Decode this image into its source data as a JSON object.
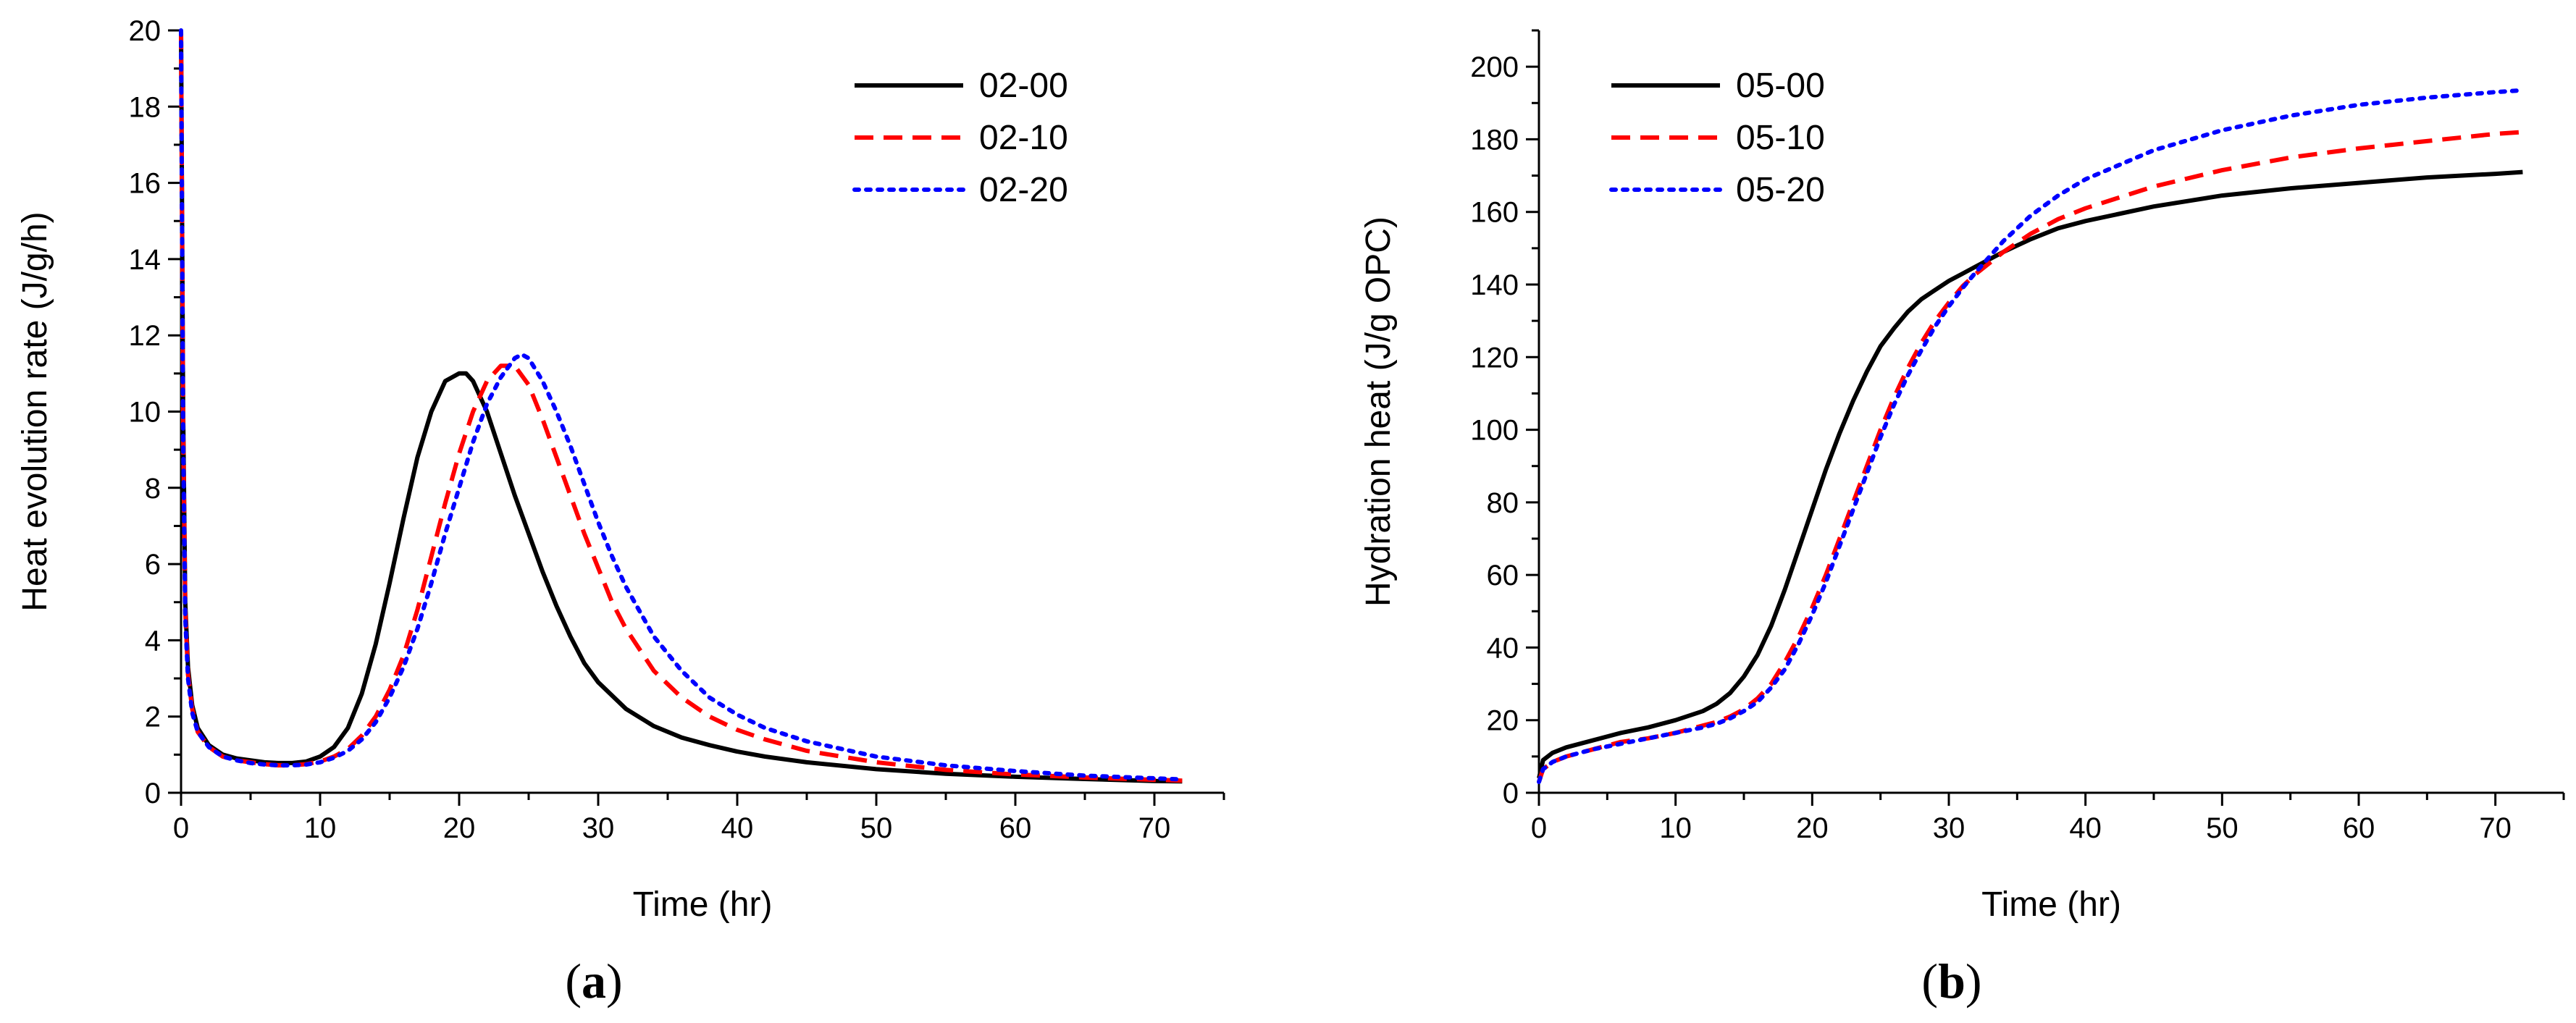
{
  "colors": {
    "series_00": "#000000",
    "series_10": "#ff0000",
    "series_20": "#0000ff"
  },
  "chart_data": [
    {
      "id": "a",
      "panel_label": "a",
      "type": "line",
      "title": "",
      "xlabel": "Time (hr)",
      "ylabel": "Heat evolution rate (J/g/h)",
      "xlim": [
        0,
        75
      ],
      "ylim": [
        0,
        20
      ],
      "xticks": [
        0,
        10,
        20,
        30,
        40,
        50,
        60,
        70
      ],
      "yticks": [
        0,
        2,
        4,
        6,
        8,
        10,
        12,
        14,
        16,
        18,
        20
      ],
      "legend_position": "top-right",
      "series": [
        {
          "name": "02-00",
          "color": "#000000",
          "dash": "solid",
          "x": [
            0,
            0.15,
            0.3,
            0.5,
            0.8,
            1.2,
            2,
            3,
            4,
            5,
            6,
            7,
            8,
            9,
            10,
            11,
            12,
            13,
            14,
            15,
            16,
            17,
            18,
            19,
            20,
            20.5,
            21,
            22,
            23,
            24,
            25,
            26,
            27,
            28,
            29,
            30,
            32,
            34,
            36,
            38,
            40,
            42,
            45,
            50,
            55,
            60,
            65,
            70,
            72
          ],
          "y": [
            20,
            10,
            5,
            3.3,
            2.3,
            1.7,
            1.25,
            1.0,
            0.9,
            0.85,
            0.8,
            0.78,
            0.78,
            0.82,
            0.95,
            1.2,
            1.7,
            2.6,
            3.9,
            5.5,
            7.2,
            8.8,
            10.0,
            10.8,
            11.0,
            11.0,
            10.8,
            10.0,
            8.9,
            7.8,
            6.8,
            5.8,
            4.9,
            4.1,
            3.4,
            2.9,
            2.2,
            1.75,
            1.45,
            1.25,
            1.08,
            0.95,
            0.8,
            0.62,
            0.5,
            0.42,
            0.36,
            0.31,
            0.3
          ]
        },
        {
          "name": "02-10",
          "color": "#ff0000",
          "dash": "dashed",
          "x": [
            0,
            0.15,
            0.3,
            0.5,
            0.8,
            1.2,
            2,
            3,
            4,
            5,
            6,
            7,
            8,
            9,
            10,
            11,
            12,
            13,
            14,
            15,
            16,
            17,
            18,
            19,
            20,
            21,
            22,
            22.5,
            23,
            24,
            25,
            26,
            27,
            28,
            29,
            30,
            31,
            32,
            34,
            36,
            38,
            40,
            42,
            45,
            50,
            55,
            60,
            65,
            70,
            72
          ],
          "y": [
            20,
            9.5,
            4.8,
            3.1,
            2.2,
            1.6,
            1.2,
            0.95,
            0.85,
            0.8,
            0.75,
            0.72,
            0.72,
            0.75,
            0.82,
            0.95,
            1.15,
            1.5,
            2.0,
            2.7,
            3.6,
            4.8,
            6.2,
            7.6,
            8.9,
            10.0,
            10.8,
            11.0,
            11.2,
            11.2,
            10.7,
            9.8,
            8.8,
            7.8,
            6.8,
            5.9,
            5.0,
            4.3,
            3.2,
            2.5,
            2.0,
            1.65,
            1.4,
            1.1,
            0.8,
            0.6,
            0.48,
            0.4,
            0.34,
            0.32
          ]
        },
        {
          "name": "02-20",
          "color": "#0000ff",
          "dash": "dotted",
          "x": [
            0,
            0.15,
            0.3,
            0.5,
            0.8,
            1.2,
            2,
            3,
            4,
            5,
            6,
            7,
            8,
            9,
            10,
            11,
            12,
            13,
            14,
            15,
            16,
            17,
            18,
            19,
            20,
            21,
            22,
            23,
            24,
            24.5,
            25,
            26,
            27,
            28,
            29,
            30,
            31,
            32,
            34,
            36,
            38,
            40,
            42,
            45,
            50,
            55,
            60,
            65,
            70,
            72
          ],
          "y": [
            20,
            9.3,
            4.6,
            3.0,
            2.1,
            1.6,
            1.2,
            0.95,
            0.85,
            0.78,
            0.74,
            0.72,
            0.72,
            0.74,
            0.8,
            0.92,
            1.1,
            1.4,
            1.85,
            2.5,
            3.3,
            4.3,
            5.5,
            6.8,
            8.0,
            9.2,
            10.2,
            10.9,
            11.4,
            11.5,
            11.4,
            10.8,
            10.0,
            9.1,
            8.1,
            7.1,
            6.2,
            5.4,
            4.1,
            3.2,
            2.5,
            2.05,
            1.7,
            1.35,
            0.95,
            0.72,
            0.57,
            0.45,
            0.38,
            0.35
          ]
        }
      ]
    },
    {
      "id": "b",
      "panel_label": "b",
      "type": "line",
      "title": "",
      "xlabel": "Time (hr)",
      "ylabel": "Hydration heat (J/g OPC)",
      "xlim": [
        0,
        75
      ],
      "ylim": [
        0,
        210
      ],
      "xticks": [
        0,
        10,
        20,
        30,
        40,
        50,
        60,
        70
      ],
      "yticks": [
        0,
        20,
        40,
        60,
        80,
        100,
        120,
        140,
        160,
        180,
        200
      ],
      "legend_position": "top-left",
      "series": [
        {
          "name": "05-00",
          "color": "#000000",
          "dash": "solid",
          "x": [
            0,
            0.3,
            1,
            2,
            4,
            6,
            8,
            10,
            12,
            13,
            14,
            15,
            16,
            17,
            18,
            19,
            20,
            21,
            22,
            23,
            24,
            25,
            26,
            27,
            28,
            29,
            30,
            31,
            32,
            34,
            36,
            38,
            40,
            45,
            50,
            55,
            60,
            65,
            70,
            72
          ],
          "y": [
            4,
            9,
            11,
            12.5,
            14.5,
            16.5,
            18,
            20,
            22.5,
            24.5,
            27.5,
            32,
            38,
            46,
            56,
            67,
            78,
            89,
            99,
            108,
            116,
            123,
            128,
            132.5,
            136,
            138.5,
            141,
            143,
            145,
            149,
            152.5,
            155.5,
            157.5,
            161.5,
            164.5,
            166.5,
            168,
            169.5,
            170.5,
            171
          ]
        },
        {
          "name": "05-10",
          "color": "#ff0000",
          "dash": "dashed",
          "x": [
            0,
            0.3,
            1,
            2,
            4,
            6,
            8,
            10,
            12,
            13,
            14,
            15,
            16,
            17,
            18,
            19,
            20,
            21,
            22,
            23,
            24,
            25,
            26,
            27,
            28,
            29,
            30,
            31,
            32,
            34,
            36,
            38,
            40,
            45,
            50,
            55,
            60,
            65,
            70,
            72
          ],
          "y": [
            3,
            6.5,
            8.5,
            10,
            12,
            14,
            15,
            16.5,
            18.5,
            19.5,
            21,
            23,
            26,
            30,
            36,
            43,
            51,
            60,
            70,
            80,
            90,
            100,
            109,
            117,
            124,
            130,
            135,
            139.5,
            143,
            149,
            154,
            158,
            161,
            167,
            171.5,
            175,
            177.5,
            179.5,
            181.5,
            182
          ]
        },
        {
          "name": "05-20",
          "color": "#0000ff",
          "dash": "dotted",
          "x": [
            0,
            0.3,
            1,
            2,
            4,
            6,
            8,
            10,
            12,
            13,
            14,
            15,
            16,
            17,
            18,
            19,
            20,
            21,
            22,
            23,
            24,
            25,
            26,
            27,
            28,
            29,
            30,
            31,
            32,
            34,
            36,
            38,
            40,
            45,
            50,
            55,
            60,
            65,
            70,
            72
          ],
          "y": [
            3,
            6.5,
            8.5,
            10,
            12,
            13.5,
            15,
            16.5,
            18,
            19,
            20.5,
            22.5,
            25,
            29,
            34,
            41,
            49,
            58,
            68,
            78,
            88,
            98,
            107,
            115,
            122,
            128.5,
            134,
            139,
            143.5,
            152,
            159,
            164.5,
            169,
            177,
            182.5,
            186.5,
            189.5,
            191.5,
            193,
            193.5
          ]
        }
      ]
    }
  ]
}
